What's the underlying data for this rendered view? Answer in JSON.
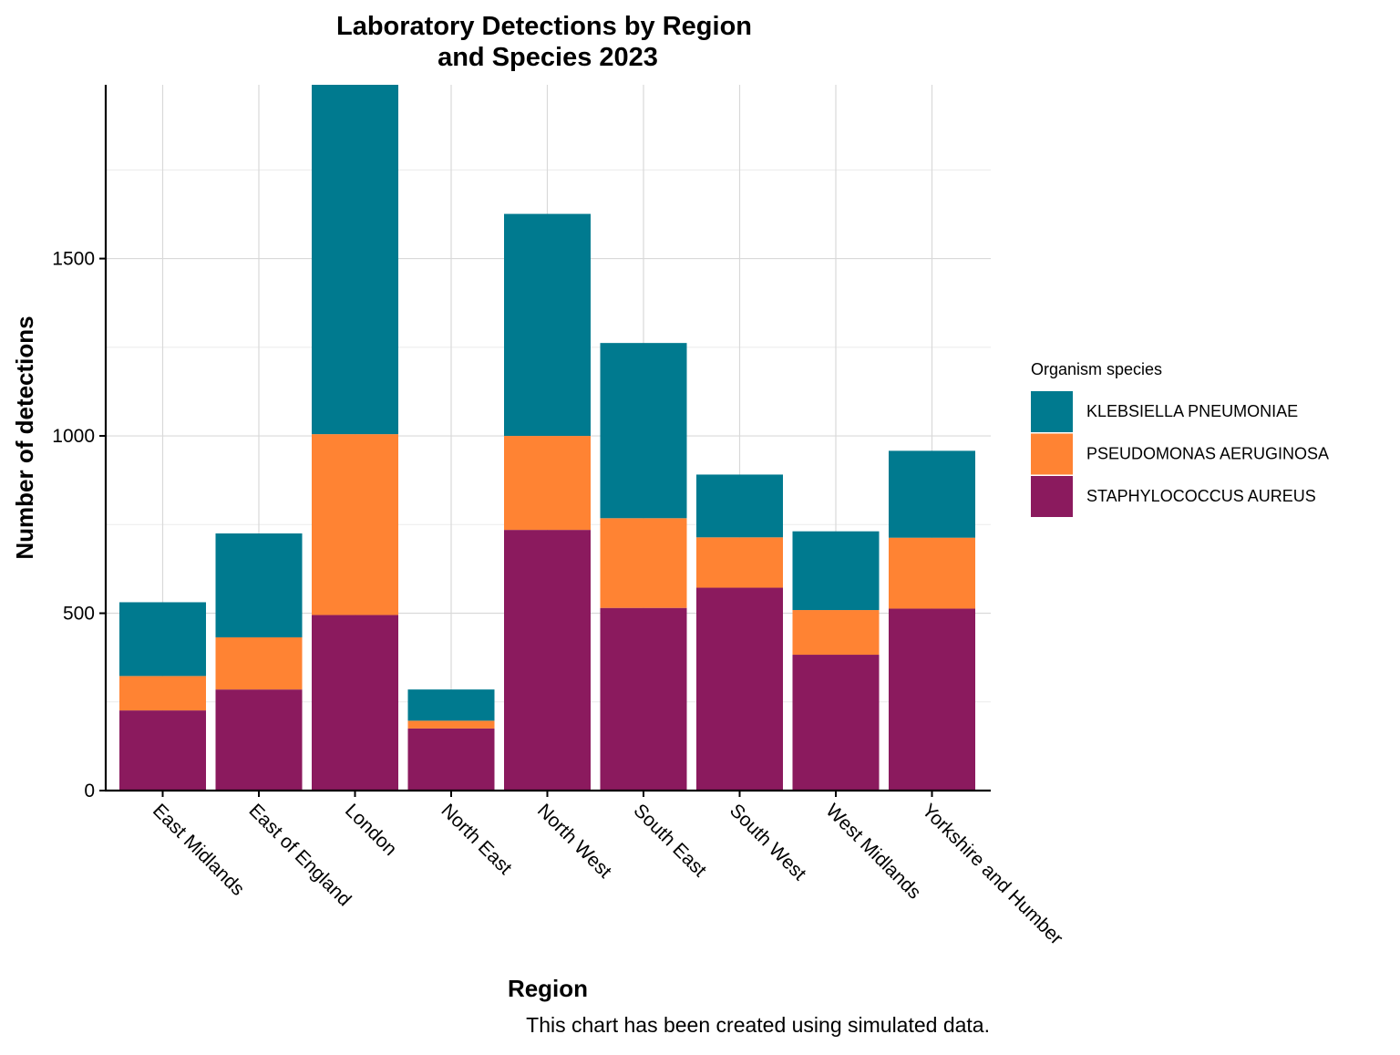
{
  "chart_data": {
    "type": "bar",
    "stacked": true,
    "title": [
      "Laboratory Detections by Region",
      "and Species 2023"
    ],
    "xlabel": "Region",
    "ylabel": "Number of detections",
    "caption": "This chart has been created using simulated data.",
    "ylim": [
      0,
      1990
    ],
    "yticks": [
      0,
      500,
      1000,
      1500
    ],
    "grid": true,
    "legend_position": "right",
    "legend_title": "Organism species",
    "categories": [
      "East Midlands",
      "East of England",
      "London",
      "North East",
      "North West",
      "South East",
      "South West",
      "West Midlands",
      "Yorkshire and Humber"
    ],
    "series": [
      {
        "name": "STAPHYLOCOCCUS AUREUS",
        "color": "#8B1A5E",
        "values": [
          226,
          285,
          495,
          175,
          735,
          515,
          572,
          383,
          513
        ]
      },
      {
        "name": "PSEUDOMONAS AERUGINOSA",
        "color": "#FF8333",
        "values": [
          97,
          147,
          510,
          22,
          265,
          253,
          142,
          126,
          200
        ]
      },
      {
        "name": "KLEBSIELLA PNEUMONIAE",
        "color": "#007A8F",
        "values": [
          208,
          293,
          985,
          88,
          626,
          494,
          177,
          222,
          245
        ]
      }
    ],
    "legend_order": [
      "KLEBSIELLA PNEUMONIAE",
      "PSEUDOMONAS AERUGINOSA",
      "STAPHYLOCOCCUS AUREUS"
    ]
  }
}
